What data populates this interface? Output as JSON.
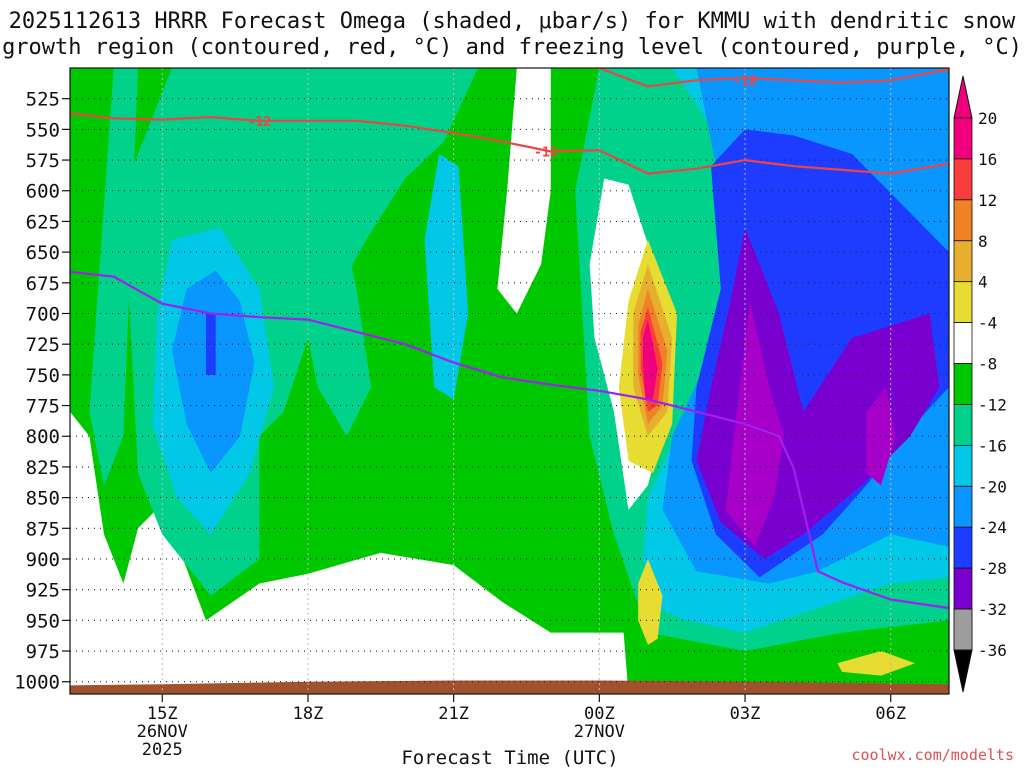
{
  "chart_data": {
    "type": "heatmap",
    "title_line1": "2025112613 HRRR Forecast Omega (shaded, μbar/s) for KMMU with dendritic snow",
    "title_line2": "growth region (contoured, red, °C) and freezing level (contoured, purple, °C)",
    "xlabel": "Forecast Time (UTC)",
    "ylabel": "",
    "credit": "coolwx.com/modelts",
    "x_range_hours": [
      -1.9,
      16.2
    ],
    "y_range_hpa": [
      500,
      1010
    ],
    "y_ticks": [
      525,
      550,
      575,
      600,
      625,
      650,
      675,
      700,
      725,
      750,
      775,
      800,
      825,
      850,
      875,
      900,
      925,
      950,
      975,
      1000
    ],
    "x_ticks": [
      {
        "hour": 0,
        "label": "15Z",
        "sub1": "26NOV",
        "sub2": "2025"
      },
      {
        "hour": 3,
        "label": "18Z",
        "sub1": "",
        "sub2": ""
      },
      {
        "hour": 6,
        "label": "21Z",
        "sub1": "",
        "sub2": ""
      },
      {
        "hour": 9,
        "label": "00Z",
        "sub1": "27NOV",
        "sub2": ""
      },
      {
        "hour": 12,
        "label": "03Z",
        "sub1": "",
        "sub2": ""
      },
      {
        "hour": 15,
        "label": "06Z",
        "sub1": "",
        "sub2": ""
      }
    ],
    "colorbar": {
      "levels": [
        -36,
        -32,
        -28,
        -24,
        -20,
        -16,
        -12,
        -8,
        -4,
        4,
        8,
        12,
        16,
        20
      ],
      "colors": [
        "#9d9d9d",
        "#a700c8",
        "#7a00d0",
        "#1e3cff",
        "#0a96ff",
        "#00c8e6",
        "#00d28c",
        "#00c800",
        "#ffffff",
        "#e6dc32",
        "#e6af2d",
        "#f08228",
        "#fa3c3c",
        "#f0007d"
      ],
      "under_color": "#000000",
      "over_color": "#f0007d"
    },
    "series": [
      {
        "name": "Dendritic growth -12 °C",
        "label": "-12",
        "color": "#ee4444",
        "x": [
          -1.9,
          -1,
          0,
          1,
          2,
          3,
          4,
          5,
          6,
          7,
          8,
          9,
          10,
          11,
          12,
          13,
          14,
          15,
          16.2
        ],
        "y": [
          537,
          541,
          542,
          540,
          543,
          543,
          543,
          547,
          553,
          560,
          568,
          567,
          586,
          582,
          575,
          580,
          583,
          586,
          578
        ]
      },
      {
        "name": "Dendritic growth -18 °C",
        "label": "-18",
        "color": "#ee4444",
        "x": [
          9,
          10,
          11,
          12,
          13,
          14,
          15,
          16.2
        ],
        "y": [
          500,
          515,
          510,
          508,
          510,
          512,
          510,
          501
        ]
      },
      {
        "name": "Freezing level 0 °C",
        "label": "",
        "color": "#a020f0",
        "x": [
          -1.9,
          -1,
          0,
          1,
          2,
          3,
          4,
          5,
          6,
          7,
          8,
          9,
          10,
          11,
          12,
          12.7,
          13,
          13.5,
          14,
          15,
          16.2
        ],
        "y": [
          666,
          670,
          692,
          700,
          703,
          705,
          715,
          725,
          740,
          752,
          758,
          763,
          770,
          780,
          790,
          800,
          826,
          910,
          919,
          933,
          940
        ]
      }
    ],
    "contour_labels": [
      {
        "text": "-12",
        "hour": 2.0,
        "hpa": 543
      },
      {
        "text": "-12",
        "hour": 7.9,
        "hpa": 568
      },
      {
        "text": "-18",
        "hour": 12.0,
        "hpa": 510
      }
    ],
    "field_features": [
      {
        "name": "Strong ascent core",
        "hour": 12.0,
        "hpa": 800,
        "value_min": -32
      },
      {
        "name": "Strong descent core",
        "hour": 10.0,
        "hpa": 725,
        "value_max": 20
      },
      {
        "name": "Secondary ascent",
        "hour": 1.0,
        "hpa": 720,
        "value_min": -24
      }
    ]
  }
}
